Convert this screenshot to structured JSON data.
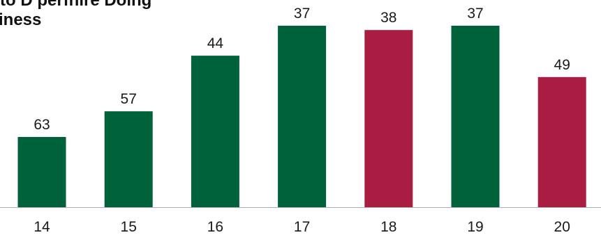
{
  "chart_data": {
    "type": "bar",
    "title_line1": "to D perfhire Doing",
    "title_line2": "iness",
    "categories": [
      "14",
      "15",
      "16",
      "17",
      "18",
      "19",
      "20"
    ],
    "values": [
      63,
      57,
      44,
      37,
      38,
      37,
      49
    ],
    "bar_colors": [
      "#00623B",
      "#00623B",
      "#00623B",
      "#00623B",
      "#AA1D43",
      "#00623B",
      "#AA1D43"
    ],
    "y_inverted": true,
    "ylim": [
      30,
      80
    ],
    "grid": false,
    "legend": "none"
  }
}
